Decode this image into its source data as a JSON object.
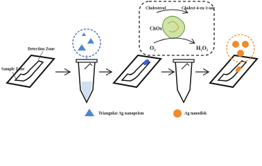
{
  "labels": {
    "detection_zone": "Detection Zone",
    "sample_zone": "Sample Zone",
    "cholesterol": "Cholesterol",
    "chox": "ChOx",
    "product": "Cholest-4-en-3-one",
    "o2": "O₂",
    "h2o2": "H₂O₂"
  },
  "legend": {
    "nanoprism": "Triangular Ag nanoprism",
    "nanodisk": "Ag nanodisk"
  }
}
